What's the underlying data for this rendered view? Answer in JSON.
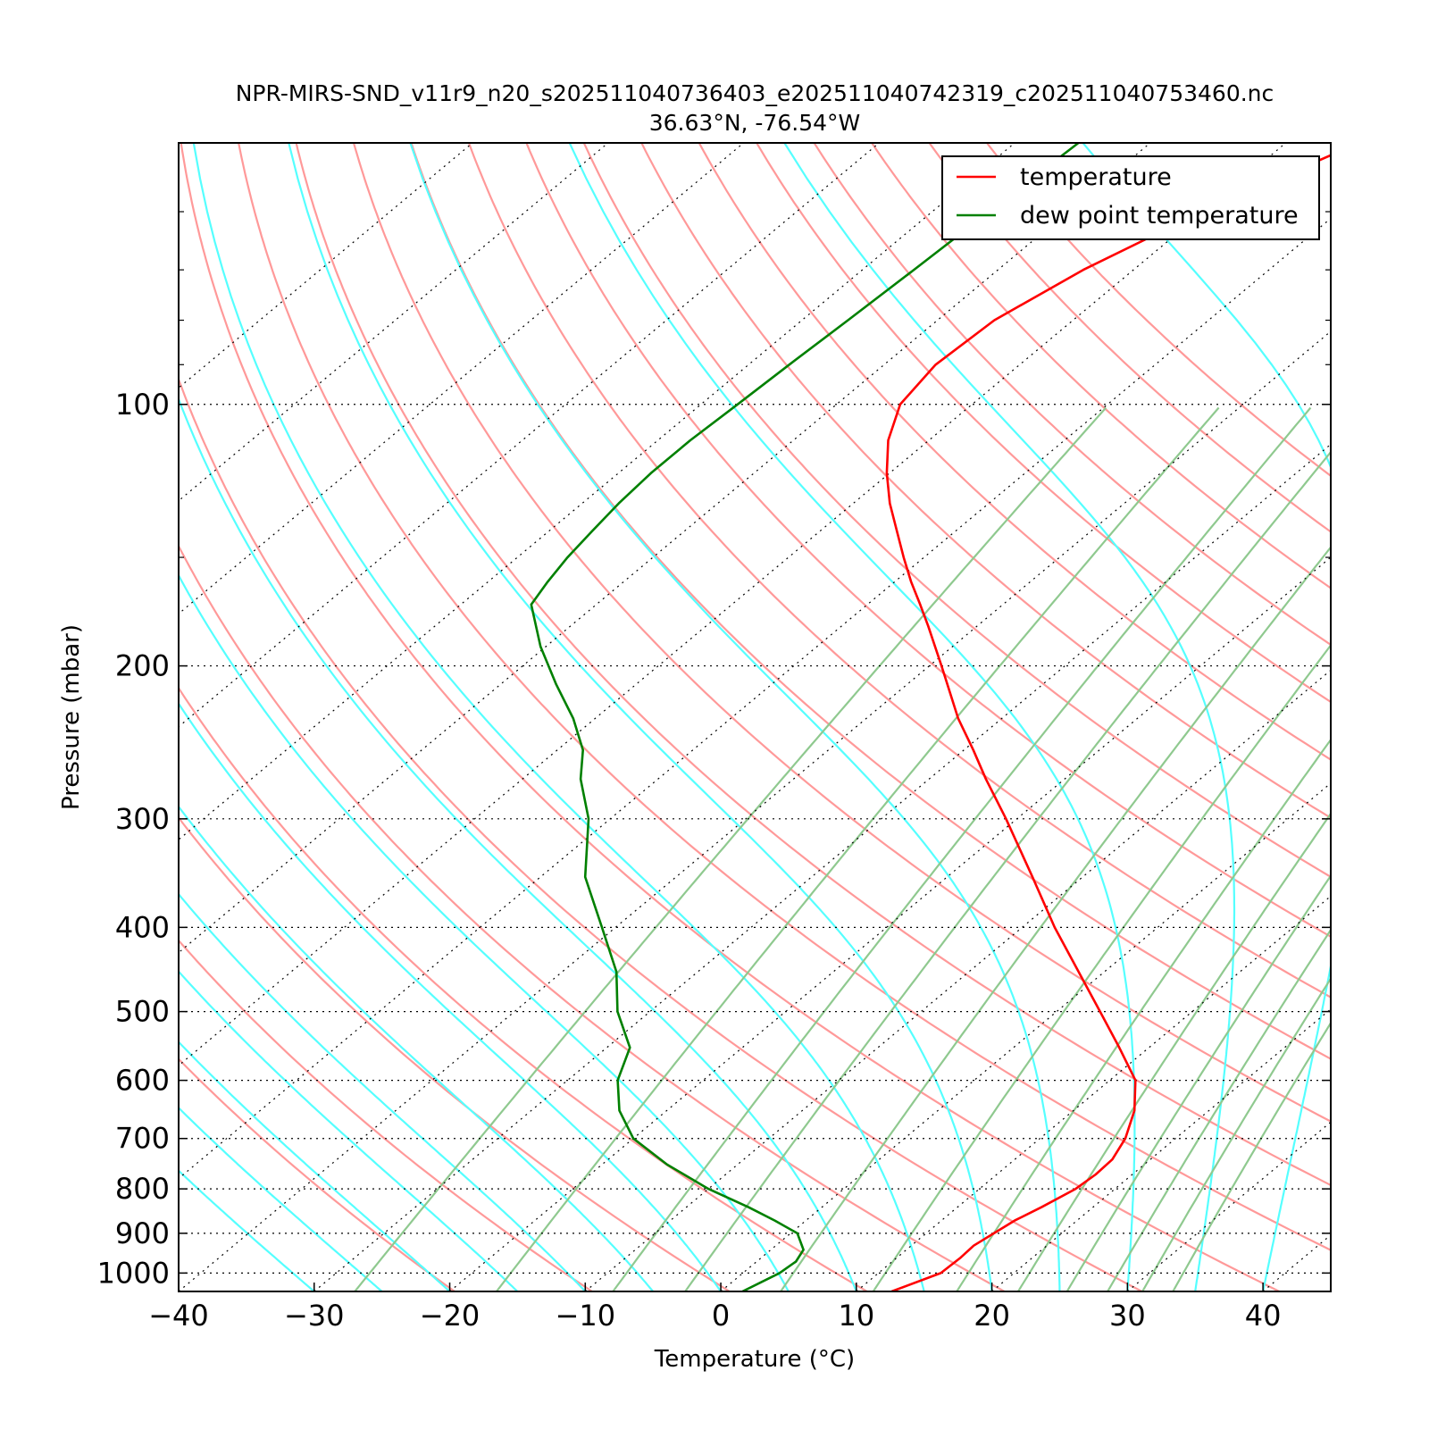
{
  "chart_data": {
    "type": "line",
    "subtype": "skew-T log-P diagram",
    "title": "NPR-MIRS-SND_v11r9_n20_s202511040736403_e202511040742319_c202511040753460.nc",
    "subtitle": "36.63°N, -76.54°W",
    "xlabel": "Temperature (°C)",
    "ylabel": "Pressure (mbar)",
    "xlim": [
      -40,
      45
    ],
    "ylim": [
      1050,
      50
    ],
    "y_scale": "log",
    "x_ticks": [
      "−40",
      "−30",
      "−20",
      "−10",
      "0",
      "10",
      "20",
      "30",
      "40"
    ],
    "y_ticks": [
      "100",
      "200",
      "300",
      "400",
      "500",
      "600",
      "700",
      "800",
      "900",
      "1000"
    ],
    "grid": "dotted horizontal isobars and skewed isotherms",
    "legend": "top-right",
    "series": [
      {
        "name": "temperature",
        "color": "#ff0000",
        "pressure": [
          1050,
          1000,
          960,
          930,
          900,
          870,
          840,
          800,
          770,
          740,
          700,
          650,
          600,
          550,
          500,
          450,
          400,
          350,
          300,
          270,
          250,
          230,
          200,
          180,
          170,
          160,
          150,
          140,
          130,
          120,
          110,
          100,
          90,
          80,
          70,
          60,
          50
        ],
        "temperature": [
          12.6,
          14.6,
          14.7,
          14.6,
          15.0,
          15.4,
          16.2,
          17.1,
          17.3,
          17.2,
          16.3,
          14.5,
          11.9,
          7.8,
          3.2,
          -1.9,
          -7.6,
          -13.7,
          -20.8,
          -25.8,
          -29.3,
          -33.2,
          -39.1,
          -43.6,
          -46.1,
          -48.8,
          -51.5,
          -54.3,
          -57.3,
          -60.2,
          -63.0,
          -65.3,
          -66.2,
          -65.8,
          -63.7,
          -60.1,
          -54.6
        ]
      },
      {
        "name": "dew point temperature",
        "color": "#008000",
        "pressure": [
          1050,
          1000,
          970,
          940,
          900,
          870,
          840,
          800,
          750,
          700,
          650,
          600,
          550,
          500,
          450,
          400,
          350,
          300,
          270,
          250,
          230,
          210,
          190,
          170,
          160,
          150,
          140,
          130,
          120,
          110,
          100,
          90,
          80,
          70,
          60,
          50
        ],
        "temperature": [
          1.6,
          2.7,
          2.9,
          2.4,
          0.5,
          -2.3,
          -5.4,
          -10.0,
          -15.2,
          -20.0,
          -23.5,
          -26.3,
          -28.3,
          -32.4,
          -36.0,
          -41.0,
          -46.7,
          -51.6,
          -55.7,
          -58.1,
          -61.6,
          -65.9,
          -70.4,
          -74.8,
          -75.6,
          -76.3,
          -76.8,
          -77.3,
          -77.6,
          -77.6,
          -77.3,
          -77.0,
          -76.6,
          -76.2,
          -75.8,
          -75.3
        ]
      }
    ],
    "reference_lines": {
      "dry_adiabats_theta_K": [
        250,
        260,
        270,
        280,
        290,
        300,
        310,
        320,
        330,
        340,
        350,
        360,
        370,
        380,
        390,
        400,
        410,
        420,
        430,
        440,
        450
      ],
      "dry_adiabat_color": "#ff9999",
      "moist_adiabats_start_C": [
        -30,
        -25,
        -20,
        -15,
        -10,
        -5,
        0,
        5,
        10,
        15,
        20,
        25,
        30,
        35,
        40,
        45,
        50
      ],
      "moist_adiabat_color": "#55ffff",
      "mixing_ratios_gkg": [
        0.4,
        1,
        2,
        3,
        5,
        8,
        12,
        16,
        20,
        24,
        28,
        32
      ],
      "mixing_ratio_color": "#8fc98f"
    }
  }
}
